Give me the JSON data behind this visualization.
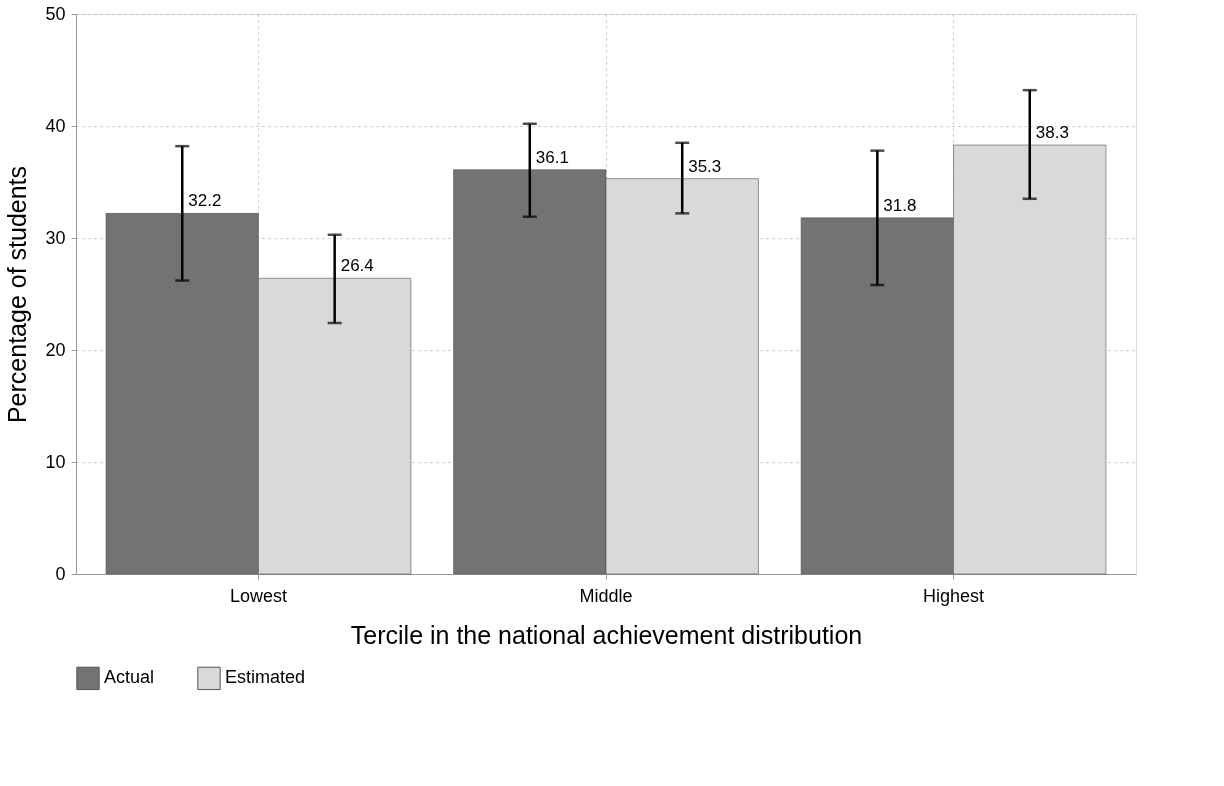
{
  "chart_data": {
    "type": "bar",
    "categories": [
      "Lowest",
      "Middle",
      "Highest"
    ],
    "xlabel": "Tercile in the national achievement distribution",
    "ylabel": "Percentage of students",
    "ylim": [
      0,
      50
    ],
    "yticks": [
      0,
      10,
      20,
      30,
      40,
      50
    ],
    "series": [
      {
        "name": "Actual",
        "color": "#737373",
        "values": [
          32.2,
          36.1,
          31.8
        ],
        "errors": [
          [
            26.2,
            38.2
          ],
          [
            31.9,
            40.2
          ],
          [
            25.8,
            37.8
          ]
        ]
      },
      {
        "name": "Estimated",
        "color": "#d9d9d9",
        "values": [
          26.4,
          35.3,
          38.3
        ],
        "errors": [
          [
            22.4,
            30.3
          ],
          [
            32.2,
            38.5
          ],
          [
            33.5,
            43.2
          ]
        ]
      }
    ],
    "data_labels": true,
    "grid": true,
    "legend": "bottom"
  }
}
